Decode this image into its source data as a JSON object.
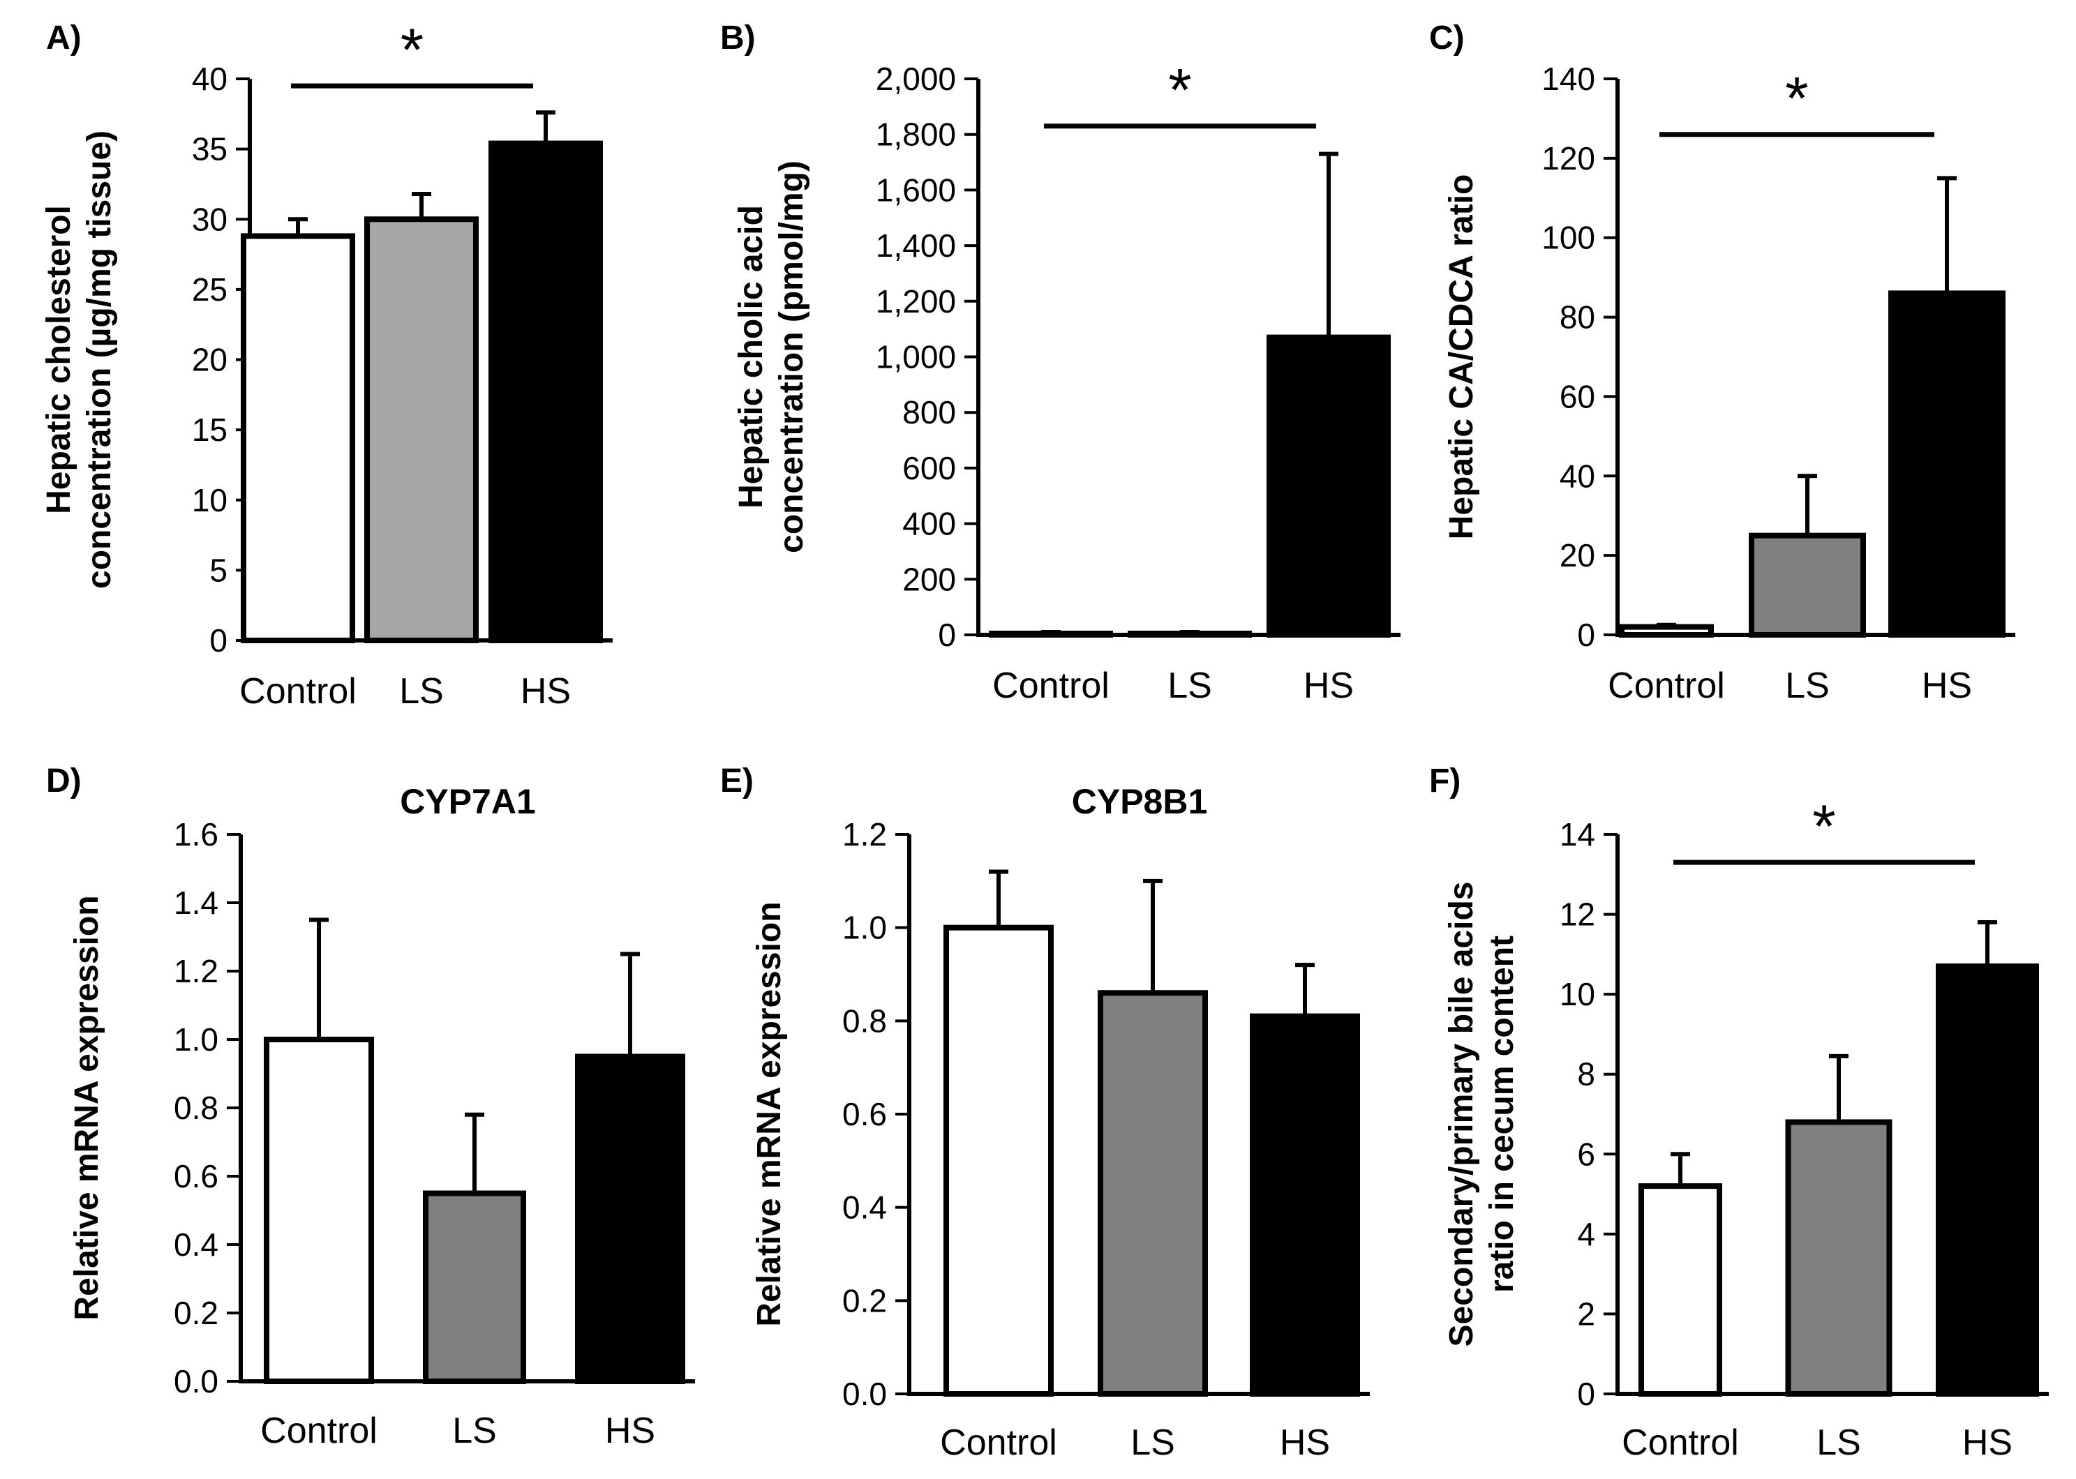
{
  "chart_data": [
    {
      "panel": "A)",
      "type": "bar",
      "title": "",
      "ylabel_lines": [
        "Hepatic cholesterol",
        "concentration (µg/mg tissue)"
      ],
      "xlabel": "",
      "categories": [
        "Control",
        "LS",
        "HS"
      ],
      "values": [
        28.8,
        30.0,
        35.4
      ],
      "errors": [
        1.2,
        1.8,
        2.2
      ],
      "bar_colors": [
        "#ffffff",
        "#a6a6a6",
        "#000000"
      ],
      "ylim": [
        0,
        40
      ],
      "yticks": [
        0,
        5,
        10,
        15,
        20,
        25,
        30,
        35,
        40
      ],
      "ytick_labels": [
        "0",
        "5",
        "10",
        "15",
        "20",
        "25",
        "30",
        "35",
        "40"
      ],
      "significance": {
        "from": "Control",
        "to": "HS",
        "label": "*",
        "level": 39.5
      }
    },
    {
      "panel": "B)",
      "type": "bar",
      "title": "",
      "ylabel_lines": [
        "Hepatic cholic acid",
        "concentration (pmol/mg)"
      ],
      "xlabel": "",
      "categories": [
        "Control",
        "LS",
        "HS"
      ],
      "values": [
        5,
        5,
        1070
      ],
      "errors": [
        5,
        5,
        660
      ],
      "bar_colors": [
        "#ffffff",
        "#a6a6a6",
        "#000000"
      ],
      "ylim": [
        0,
        2000
      ],
      "yticks": [
        0,
        200,
        400,
        600,
        800,
        1000,
        1200,
        1400,
        1600,
        1800,
        2000
      ],
      "ytick_labels": [
        "0",
        "200",
        "400",
        "600",
        "800",
        "1,000",
        "1,200",
        "1,400",
        "1,600",
        "1,800",
        "2,000"
      ],
      "significance": {
        "from": "Control",
        "to": "HS",
        "label": "*",
        "level": 1830
      }
    },
    {
      "panel": "C)",
      "type": "bar",
      "title": "",
      "ylabel_lines": [
        "Hepatic CA/CDCA ratio"
      ],
      "xlabel": "",
      "categories": [
        "Control",
        "LS",
        "HS"
      ],
      "values": [
        2,
        25,
        86
      ],
      "errors": [
        0.5,
        15,
        29
      ],
      "bar_colors": [
        "#ffffff",
        "#808080",
        "#000000"
      ],
      "ylim": [
        0,
        140
      ],
      "yticks": [
        0,
        20,
        40,
        60,
        80,
        100,
        120,
        140
      ],
      "ytick_labels": [
        "0",
        "20",
        "40",
        "60",
        "80",
        "100",
        "120",
        "140"
      ],
      "significance": {
        "from": "Control",
        "to": "HS",
        "label": "*",
        "level": 126
      }
    },
    {
      "panel": "D)",
      "type": "bar",
      "title": "CYP7A1",
      "ylabel_lines": [
        "Relative mRNA expression"
      ],
      "xlabel": "",
      "categories": [
        "Control",
        "LS",
        "HS"
      ],
      "values": [
        1.0,
        0.55,
        0.95
      ],
      "errors": [
        0.35,
        0.23,
        0.3
      ],
      "bar_colors": [
        "#ffffff",
        "#808080",
        "#000000"
      ],
      "ylim": [
        0,
        1.6
      ],
      "yticks": [
        0,
        0.2,
        0.4,
        0.6,
        0.8,
        1.0,
        1.2,
        1.4,
        1.6
      ],
      "ytick_labels": [
        "0.0",
        "0.2",
        "0.4",
        "0.6",
        "0.8",
        "1.0",
        "1.2",
        "1.4",
        "1.6"
      ]
    },
    {
      "panel": "E)",
      "type": "bar",
      "title": "CYP8B1",
      "ylabel_lines": [
        "Relative mRNA expression"
      ],
      "xlabel": "",
      "categories": [
        "Control",
        "LS",
        "HS"
      ],
      "values": [
        1.0,
        0.86,
        0.81
      ],
      "errors": [
        0.12,
        0.24,
        0.11
      ],
      "bar_colors": [
        "#ffffff",
        "#808080",
        "#000000"
      ],
      "ylim": [
        0,
        1.2
      ],
      "yticks": [
        0,
        0.2,
        0.4,
        0.6,
        0.8,
        1.0,
        1.2
      ],
      "ytick_labels": [
        "0.0",
        "0.2",
        "0.4",
        "0.6",
        "0.8",
        "1.0",
        "1.2"
      ]
    },
    {
      "panel": "F)",
      "type": "bar",
      "title": "",
      "ylabel_lines": [
        "Secondary/primary bile acids",
        "ratio in cecum content"
      ],
      "xlabel": "",
      "categories": [
        "Control",
        "LS",
        "HS"
      ],
      "values": [
        5.2,
        6.8,
        10.7
      ],
      "errors": [
        0.8,
        1.65,
        1.1
      ],
      "bar_colors": [
        "#ffffff",
        "#808080",
        "#000000"
      ],
      "ylim": [
        0,
        14
      ],
      "yticks": [
        0,
        2,
        4,
        6,
        8,
        10,
        12,
        14
      ],
      "ytick_labels": [
        "0",
        "2",
        "4",
        "6",
        "8",
        "10",
        "12",
        "14"
      ],
      "significance": {
        "from": "Control",
        "to": "HS",
        "label": "*",
        "level": 13.3
      }
    }
  ]
}
